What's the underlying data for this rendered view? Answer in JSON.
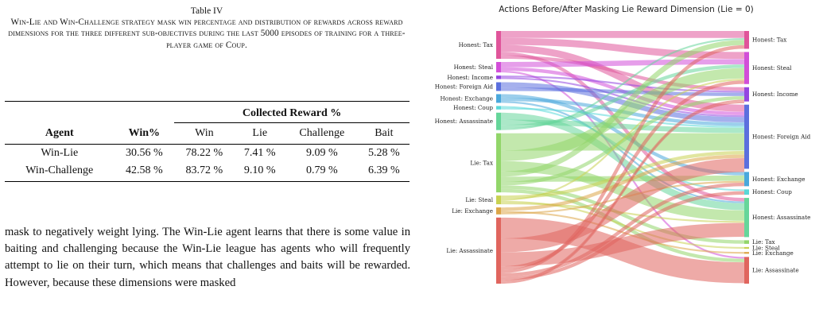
{
  "table": {
    "number": "Table IV",
    "caption": "Win-Lie and Win-Challenge strategy mask win percentage and distribution of rewards across reward dimensions for the three different sub-objectives during the last 5000 episodes of training for a three-player game of Coup.",
    "group_header": "Collected Reward %",
    "columns": [
      "Agent",
      "Win%",
      "Win",
      "Lie",
      "Challenge",
      "Bait"
    ],
    "rows": [
      [
        "Win-Lie",
        "30.56 %",
        "78.22 %",
        "7.41 %",
        "9.09 %",
        "5.28 %"
      ],
      [
        "Win-Challenge",
        "42.58 %",
        "83.72 %",
        "9.10 %",
        "0.79 %",
        "6.39 %"
      ]
    ]
  },
  "body_text": "mask to negatively weight lying. The Win-Lie agent learns that there is some value in baiting and challenging because the Win-Lie league has agents who will frequently attempt to lie on their turn, which means that challenges and baits will be rewarded. However, because these dimensions were masked",
  "chart_data": {
    "type": "sankey",
    "title": "Actions Before/After Masking Lie Reward Dimension (Lie = 0)",
    "left_nodes": [
      {
        "id": "L0",
        "label": "Honest: Tax",
        "color": "#e0559a",
        "weight": 8
      },
      {
        "id": "L1",
        "label": "Honest: Steal",
        "color": "#d24ed8",
        "weight": 3
      },
      {
        "id": "L2",
        "label": "Honest: Income",
        "color": "#9446e0",
        "weight": 1
      },
      {
        "id": "L3",
        "label": "Honest: Foreign Aid",
        "color": "#5b6fde",
        "weight": 2.5
      },
      {
        "id": "L4",
        "label": "Honest: Exchange",
        "color": "#4aa8dc",
        "weight": 2.5
      },
      {
        "id": "L5",
        "label": "Honest: Coup",
        "color": "#5ad8d8",
        "weight": 1
      },
      {
        "id": "L6",
        "label": "Honest: Assassinate",
        "color": "#66d69a",
        "weight": 5
      },
      {
        "id": "L7",
        "label": "Lie: Tax",
        "color": "#92d66a",
        "weight": 17
      },
      {
        "id": "L8",
        "label": "Lie: Steal",
        "color": "#c8d252",
        "weight": 2.5
      },
      {
        "id": "L9",
        "label": "Lie: Exchange",
        "color": "#dca648",
        "weight": 2
      },
      {
        "id": "L10",
        "label": "Lie: Assassinate",
        "color": "#e0655e",
        "weight": 19
      }
    ],
    "right_nodes": [
      {
        "id": "R0",
        "label": "Honest: Tax",
        "color": "#e0559a",
        "weight": 5
      },
      {
        "id": "R1",
        "label": "Honest: Steal",
        "color": "#d24ed8",
        "weight": 9
      },
      {
        "id": "R2",
        "label": "Honest: Income",
        "color": "#9446e0",
        "weight": 4
      },
      {
        "id": "R3",
        "label": "Honest: Foreign Aid",
        "color": "#5b6fde",
        "weight": 18
      },
      {
        "id": "R4",
        "label": "Honest: Exchange",
        "color": "#4aa8dc",
        "weight": 4
      },
      {
        "id": "R5",
        "label": "Honest: Coup",
        "color": "#5ad8d8",
        "weight": 1.5
      },
      {
        "id": "R6",
        "label": "Honest: Assassinate",
        "color": "#66d69a",
        "weight": 11
      },
      {
        "id": "R7",
        "label": "Lie: Tax",
        "color": "#92d66a",
        "weight": 1
      },
      {
        "id": "R8",
        "label": "Lie: Steal",
        "color": "#c8d252",
        "weight": 0.5
      },
      {
        "id": "R9",
        "label": "Lie: Exchange",
        "color": "#dca648",
        "weight": 0.5
      },
      {
        "id": "R10",
        "label": "Lie: Assassinate",
        "color": "#e0655e",
        "weight": 7.5
      }
    ],
    "links": [
      [
        "L0",
        "R0",
        2
      ],
      [
        "L0",
        "R1",
        2
      ],
      [
        "L0",
        "R3",
        2
      ],
      [
        "L0",
        "R6",
        1
      ],
      [
        "L0",
        "R2",
        1
      ],
      [
        "L1",
        "R1",
        1.5
      ],
      [
        "L1",
        "R3",
        1
      ],
      [
        "L1",
        "R10",
        0.5
      ],
      [
        "L2",
        "R2",
        0.5
      ],
      [
        "L2",
        "R3",
        0.5
      ],
      [
        "L3",
        "R3",
        1.5
      ],
      [
        "L3",
        "R2",
        1
      ],
      [
        "L4",
        "R4",
        1
      ],
      [
        "L4",
        "R3",
        1
      ],
      [
        "L4",
        "R6",
        0.5
      ],
      [
        "L5",
        "R5",
        0.5
      ],
      [
        "L5",
        "R3",
        0.5
      ],
      [
        "L6",
        "R6",
        2
      ],
      [
        "L6",
        "R3",
        1.5
      ],
      [
        "L6",
        "R1",
        1
      ],
      [
        "L6",
        "R0",
        0.5
      ],
      [
        "L7",
        "R3",
        5
      ],
      [
        "L7",
        "R1",
        3
      ],
      [
        "L7",
        "R6",
        3
      ],
      [
        "L7",
        "R0",
        1.5
      ],
      [
        "L7",
        "R4",
        1.5
      ],
      [
        "L7",
        "R2",
        1
      ],
      [
        "L7",
        "R7",
        1
      ],
      [
        "L7",
        "R10",
        1
      ],
      [
        "L8",
        "R3",
        1
      ],
      [
        "L8",
        "R1",
        0.5
      ],
      [
        "L8",
        "R8",
        0.5
      ],
      [
        "L8",
        "R6",
        0.5
      ],
      [
        "L9",
        "R3",
        1
      ],
      [
        "L9",
        "R9",
        0.5
      ],
      [
        "L9",
        "R4",
        0.5
      ],
      [
        "L10",
        "R10",
        6
      ],
      [
        "L10",
        "R3",
        4
      ],
      [
        "L10",
        "R6",
        4
      ],
      [
        "L10",
        "R1",
        1
      ],
      [
        "L10",
        "R0",
        1
      ],
      [
        "L10",
        "R4",
        1
      ],
      [
        "L10",
        "R5",
        1
      ],
      [
        "L10",
        "R2",
        0.5
      ],
      [
        "L10",
        "R2",
        0.5
      ]
    ]
  }
}
